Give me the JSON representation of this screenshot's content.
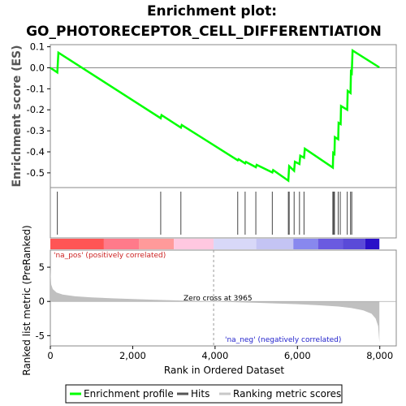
{
  "chart_data": {
    "type": "line",
    "title_line1": "Enrichment plot:",
    "title_line2": "GO_PHOTORECEPTOR_CELL_DIFFERENTIATION",
    "es_panel": {
      "ylabel": "Enrichment score (ES)",
      "ylim": [
        -0.57,
        0.11
      ],
      "yticks": [
        0.1,
        0.0,
        -0.1,
        -0.2,
        -0.3,
        -0.4,
        -0.5
      ],
      "ytick_labels": [
        "0.1",
        "0.0",
        "-0.1",
        "-0.2",
        "-0.3",
        "-0.4",
        "-0.5"
      ],
      "grid": false,
      "series": [
        {
          "name": "Enrichment profile",
          "color": "#00ff00",
          "points": [
            [
              0,
              0.0
            ],
            [
              170,
              -0.022
            ],
            [
              195,
              0.072
            ],
            [
              2680,
              -0.24
            ],
            [
              2700,
              -0.225
            ],
            [
              3170,
              -0.285
            ],
            [
              3190,
              -0.272
            ],
            [
              4550,
              -0.44
            ],
            [
              4570,
              -0.435
            ],
            [
              4730,
              -0.455
            ],
            [
              4750,
              -0.448
            ],
            [
              4990,
              -0.473
            ],
            [
              5010,
              -0.462
            ],
            [
              5390,
              -0.498
            ],
            [
              5410,
              -0.487
            ],
            [
              5780,
              -0.537
            ],
            [
              5800,
              -0.468
            ],
            [
              5920,
              -0.49
            ],
            [
              5940,
              -0.447
            ],
            [
              6050,
              -0.458
            ],
            [
              6070,
              -0.418
            ],
            [
              6160,
              -0.428
            ],
            [
              6180,
              -0.385
            ],
            [
              6860,
              -0.475
            ],
            [
              6870,
              -0.405
            ],
            [
              6900,
              -0.41
            ],
            [
              6910,
              -0.33
            ],
            [
              6990,
              -0.34
            ],
            [
              7000,
              -0.262
            ],
            [
              7050,
              -0.268
            ],
            [
              7060,
              -0.182
            ],
            [
              7210,
              -0.2
            ],
            [
              7220,
              -0.11
            ],
            [
              7290,
              -0.12
            ],
            [
              7300,
              -0.02
            ],
            [
              7320,
              -0.025
            ],
            [
              7340,
              0.082
            ],
            [
              7990,
              0.002
            ]
          ]
        }
      ]
    },
    "hits_panel": {
      "hit_positions": [
        170,
        2680,
        3170,
        4550,
        4730,
        4990,
        5390,
        5780,
        5800,
        5920,
        6050,
        6160,
        6860,
        6880,
        6900,
        6990,
        7040,
        7210,
        7290,
        7320
      ]
    },
    "color_bar": {
      "segments": [
        {
          "start": 0,
          "end": 1300,
          "color": "#ff5555"
        },
        {
          "start": 1300,
          "end": 2150,
          "color": "#ff7a8a"
        },
        {
          "start": 2150,
          "end": 3000,
          "color": "#ff9a9a"
        },
        {
          "start": 3000,
          "end": 3965,
          "color": "#ffc8e0"
        },
        {
          "start": 3965,
          "end": 5000,
          "color": "#d8d8f8"
        },
        {
          "start": 5000,
          "end": 5900,
          "color": "#c4c4f4"
        },
        {
          "start": 5900,
          "end": 6500,
          "color": "#8888ee"
        },
        {
          "start": 6500,
          "end": 7100,
          "color": "#6a5ae0"
        },
        {
          "start": 7100,
          "end": 7650,
          "color": "#5a4ad8"
        },
        {
          "start": 7650,
          "end": 7990,
          "color": "#2a10c8"
        }
      ]
    },
    "metric_panel": {
      "ylabel": "Ranked list metric (PreRanked)",
      "ylim": [
        -6.5,
        7.5
      ],
      "yticks": [
        5,
        0,
        -5
      ],
      "ytick_labels": [
        "5",
        "0",
        "-5"
      ],
      "pos_label": "'na_pos' (positively correlated)",
      "neg_label": "'na_neg' (negatively correlated)",
      "zero_cross_label": "Zero cross at 3965",
      "zero_cross": 3965,
      "curve": [
        [
          0,
          4.8
        ],
        [
          20,
          2.5
        ],
        [
          60,
          1.8
        ],
        [
          150,
          1.3
        ],
        [
          300,
          1.0
        ],
        [
          600,
          0.75
        ],
        [
          1000,
          0.6
        ],
        [
          1500,
          0.45
        ],
        [
          2000,
          0.35
        ],
        [
          2500,
          0.25
        ],
        [
          3000,
          0.15
        ],
        [
          3500,
          0.07
        ],
        [
          3965,
          0.0
        ],
        [
          4500,
          -0.1
        ],
        [
          5000,
          -0.2
        ],
        [
          5500,
          -0.3
        ],
        [
          6000,
          -0.4
        ],
        [
          6500,
          -0.55
        ],
        [
          7000,
          -0.75
        ],
        [
          7300,
          -0.95
        ],
        [
          7600,
          -1.3
        ],
        [
          7800,
          -1.8
        ],
        [
          7900,
          -2.5
        ],
        [
          7960,
          -3.6
        ],
        [
          7990,
          -6.0
        ]
      ]
    },
    "xaxis": {
      "label": "Rank in Ordered Dataset",
      "xlim": [
        0,
        8400
      ],
      "xticks": [
        0,
        2000,
        4000,
        6000,
        8000
      ],
      "xtick_labels": [
        "0",
        "2,000",
        "4,000",
        "6,000",
        "8,000"
      ]
    },
    "legend": {
      "items": [
        {
          "label": "Enrichment profile",
          "color": "#00ff00"
        },
        {
          "label": "Hits",
          "color": "#555555"
        },
        {
          "label": "Ranking metric scores",
          "color": "#c8c8c8"
        }
      ]
    }
  }
}
